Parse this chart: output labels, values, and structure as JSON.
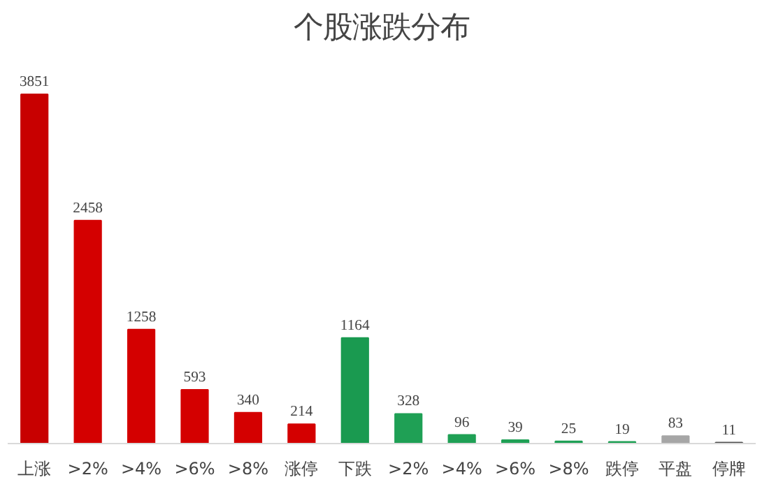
{
  "chart_data": {
    "type": "bar",
    "title": "个股涨跌分布",
    "categories": [
      "上涨",
      ">2%",
      ">4%",
      ">6%",
      ">8%",
      "涨停",
      "下跌",
      ">2%",
      ">4%",
      ">6%",
      ">8%",
      "跌停",
      "平盘",
      "停牌"
    ],
    "values": [
      3851,
      2458,
      1258,
      593,
      340,
      214,
      1164,
      328,
      96,
      39,
      25,
      19,
      83,
      11
    ],
    "colors": [
      "#c80000",
      "#d40000",
      "#d40000",
      "#d40000",
      "#d40000",
      "#d40000",
      "#1a9a50",
      "#1fa055",
      "#1fa055",
      "#1fa055",
      "#1fa055",
      "#1fa055",
      "#a6a6a6",
      "#505050"
    ],
    "data_labels": true,
    "grid": false,
    "legend": false
  }
}
